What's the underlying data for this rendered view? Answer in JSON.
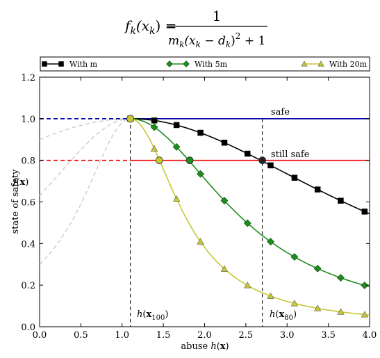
{
  "formula": {
    "lhs_f": "f",
    "lhs_sub": "k",
    "lhs_arg": "(x",
    "lhs_arg_sub": "k",
    "lhs_close": ") =",
    "numerator": "1",
    "den_m": "m",
    "den_m_sub": "k",
    "den_open": "(x",
    "den_x_sub": "k",
    "den_minus": " − d",
    "den_d_sub": "k",
    "den_close": ")",
    "den_sup": "2",
    "den_tail": " + 1"
  },
  "legend": {
    "entries": [
      {
        "label": "With m",
        "marker": "square",
        "color": "#000000"
      },
      {
        "label": "With 5m",
        "marker": "diamond",
        "color": "#1e8c1e"
      },
      {
        "label": "With 20m",
        "marker": "triangle",
        "color": "#c8c832"
      }
    ]
  },
  "annotations": {
    "safe": "safe",
    "still_safe": "still safe",
    "h100_main": "h(x",
    "h100_sub": "100",
    "h100_close": ")",
    "h80_main": "h(x",
    "h80_sub": "80",
    "h80_close": ")"
  },
  "chart_data": {
    "type": "line",
    "xlabel": "abuse h(x)",
    "ylabel": "state of safety",
    "ylabel2": "f(x)",
    "xlim": [
      0.0,
      4.0
    ],
    "ylim": [
      0.0,
      1.2
    ],
    "x_ticks": [
      "0.0",
      "0.5",
      "1.0",
      "1.5",
      "2.0",
      "2.5",
      "3.0",
      "3.5",
      "4.0"
    ],
    "y_ticks": [
      "0.0",
      "0.2",
      "0.4",
      "0.6",
      "0.8",
      "1.0",
      "1.2"
    ],
    "grid": false,
    "legend_position": "top",
    "peak_x": 1.1,
    "reference_lines": [
      {
        "name": "safe",
        "y": 1.0,
        "color": "#0000aa"
      },
      {
        "name": "still safe",
        "y": 0.8,
        "color": "#ee0000"
      }
    ],
    "vertical_markers": [
      {
        "x": 1.1,
        "label": "h(x100)"
      },
      {
        "x": 2.7,
        "label": "h(x80)"
      }
    ],
    "series": [
      {
        "name": "With m",
        "color": "#000000",
        "marker": "square",
        "m": 0.1,
        "marker_x": [
          1.1,
          1.39,
          1.66,
          1.95,
          2.24,
          2.52,
          2.8,
          3.09,
          3.37,
          3.65,
          3.94
        ]
      },
      {
        "name": "With 5m",
        "color": "#1e8c1e",
        "marker": "diamond",
        "m": 0.5,
        "marker_x": [
          1.1,
          1.39,
          1.66,
          1.95,
          2.24,
          2.52,
          2.8,
          3.09,
          3.37,
          3.65,
          3.94
        ]
      },
      {
        "name": "With 20m",
        "color": "#c8c832",
        "marker": "triangle",
        "m": 2.0,
        "marker_x": [
          1.1,
          1.39,
          1.66,
          1.95,
          2.24,
          2.52,
          2.8,
          3.09,
          3.37,
          3.65,
          3.94
        ]
      }
    ],
    "threshold_points": [
      {
        "x": 2.7,
        "y": 0.8,
        "color": "#222222"
      },
      {
        "x": 1.82,
        "y": 0.8,
        "color": "#1e8c1e"
      },
      {
        "x": 1.45,
        "y": 0.8,
        "color": "#c8c832"
      },
      {
        "x": 1.1,
        "y": 1.0,
        "color": "#c8c832"
      }
    ],
    "ghost_curves": [
      {
        "start_y": 0.3
      },
      {
        "start_y": 0.63
      },
      {
        "start_y": 0.9
      }
    ]
  }
}
